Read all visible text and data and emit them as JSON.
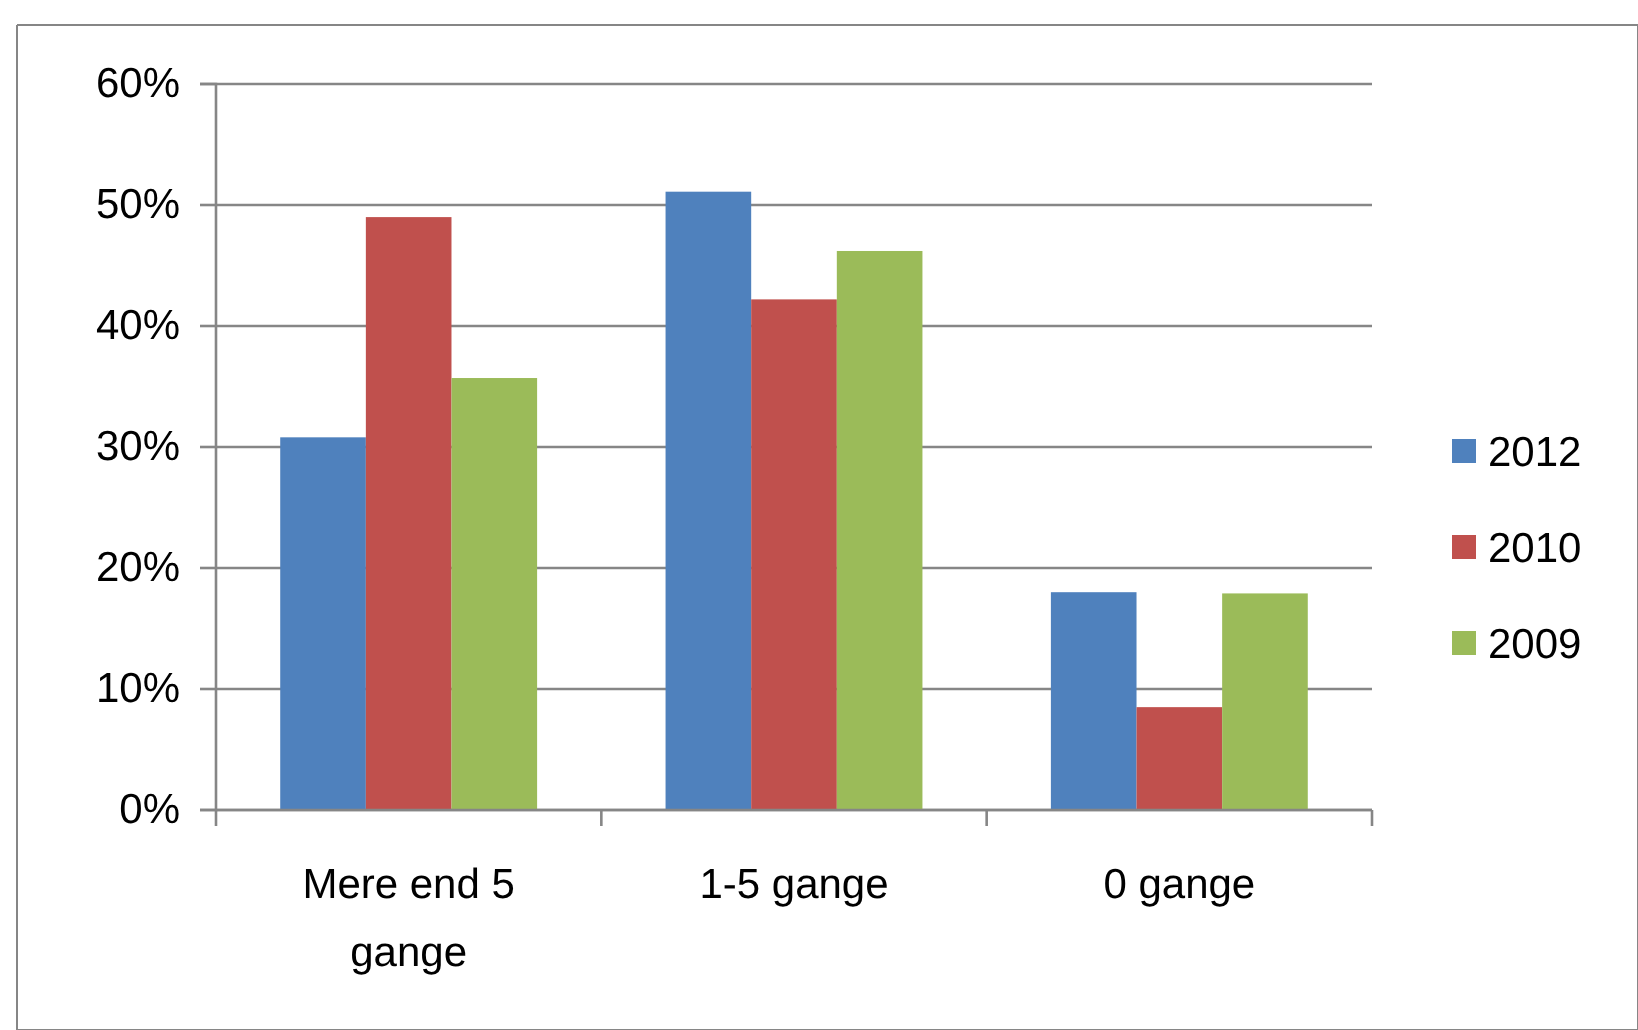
{
  "chart_data": {
    "type": "bar",
    "categories": [
      "Mere end 5 gange",
      "1-5 gange",
      "0 gange"
    ],
    "series": [
      {
        "name": "2012",
        "color": "#4f81bd",
        "values": [
          30.8,
          51.1,
          18.0
        ]
      },
      {
        "name": "2010",
        "color": "#c0504d",
        "values": [
          49.0,
          42.2,
          8.5
        ]
      },
      {
        "name": "2009",
        "color": "#9bbb59",
        "values": [
          35.7,
          46.2,
          17.9
        ]
      }
    ],
    "ylim": [
      0,
      60
    ],
    "yticks": [
      {
        "value": 0,
        "label": "0%"
      },
      {
        "value": 10,
        "label": "10%"
      },
      {
        "value": 20,
        "label": "20%"
      },
      {
        "value": 30,
        "label": "30%"
      },
      {
        "value": 40,
        "label": "40%"
      },
      {
        "value": 50,
        "label": "50%"
      },
      {
        "value": 60,
        "label": "60%"
      }
    ],
    "grid": "y",
    "legend": "right"
  }
}
